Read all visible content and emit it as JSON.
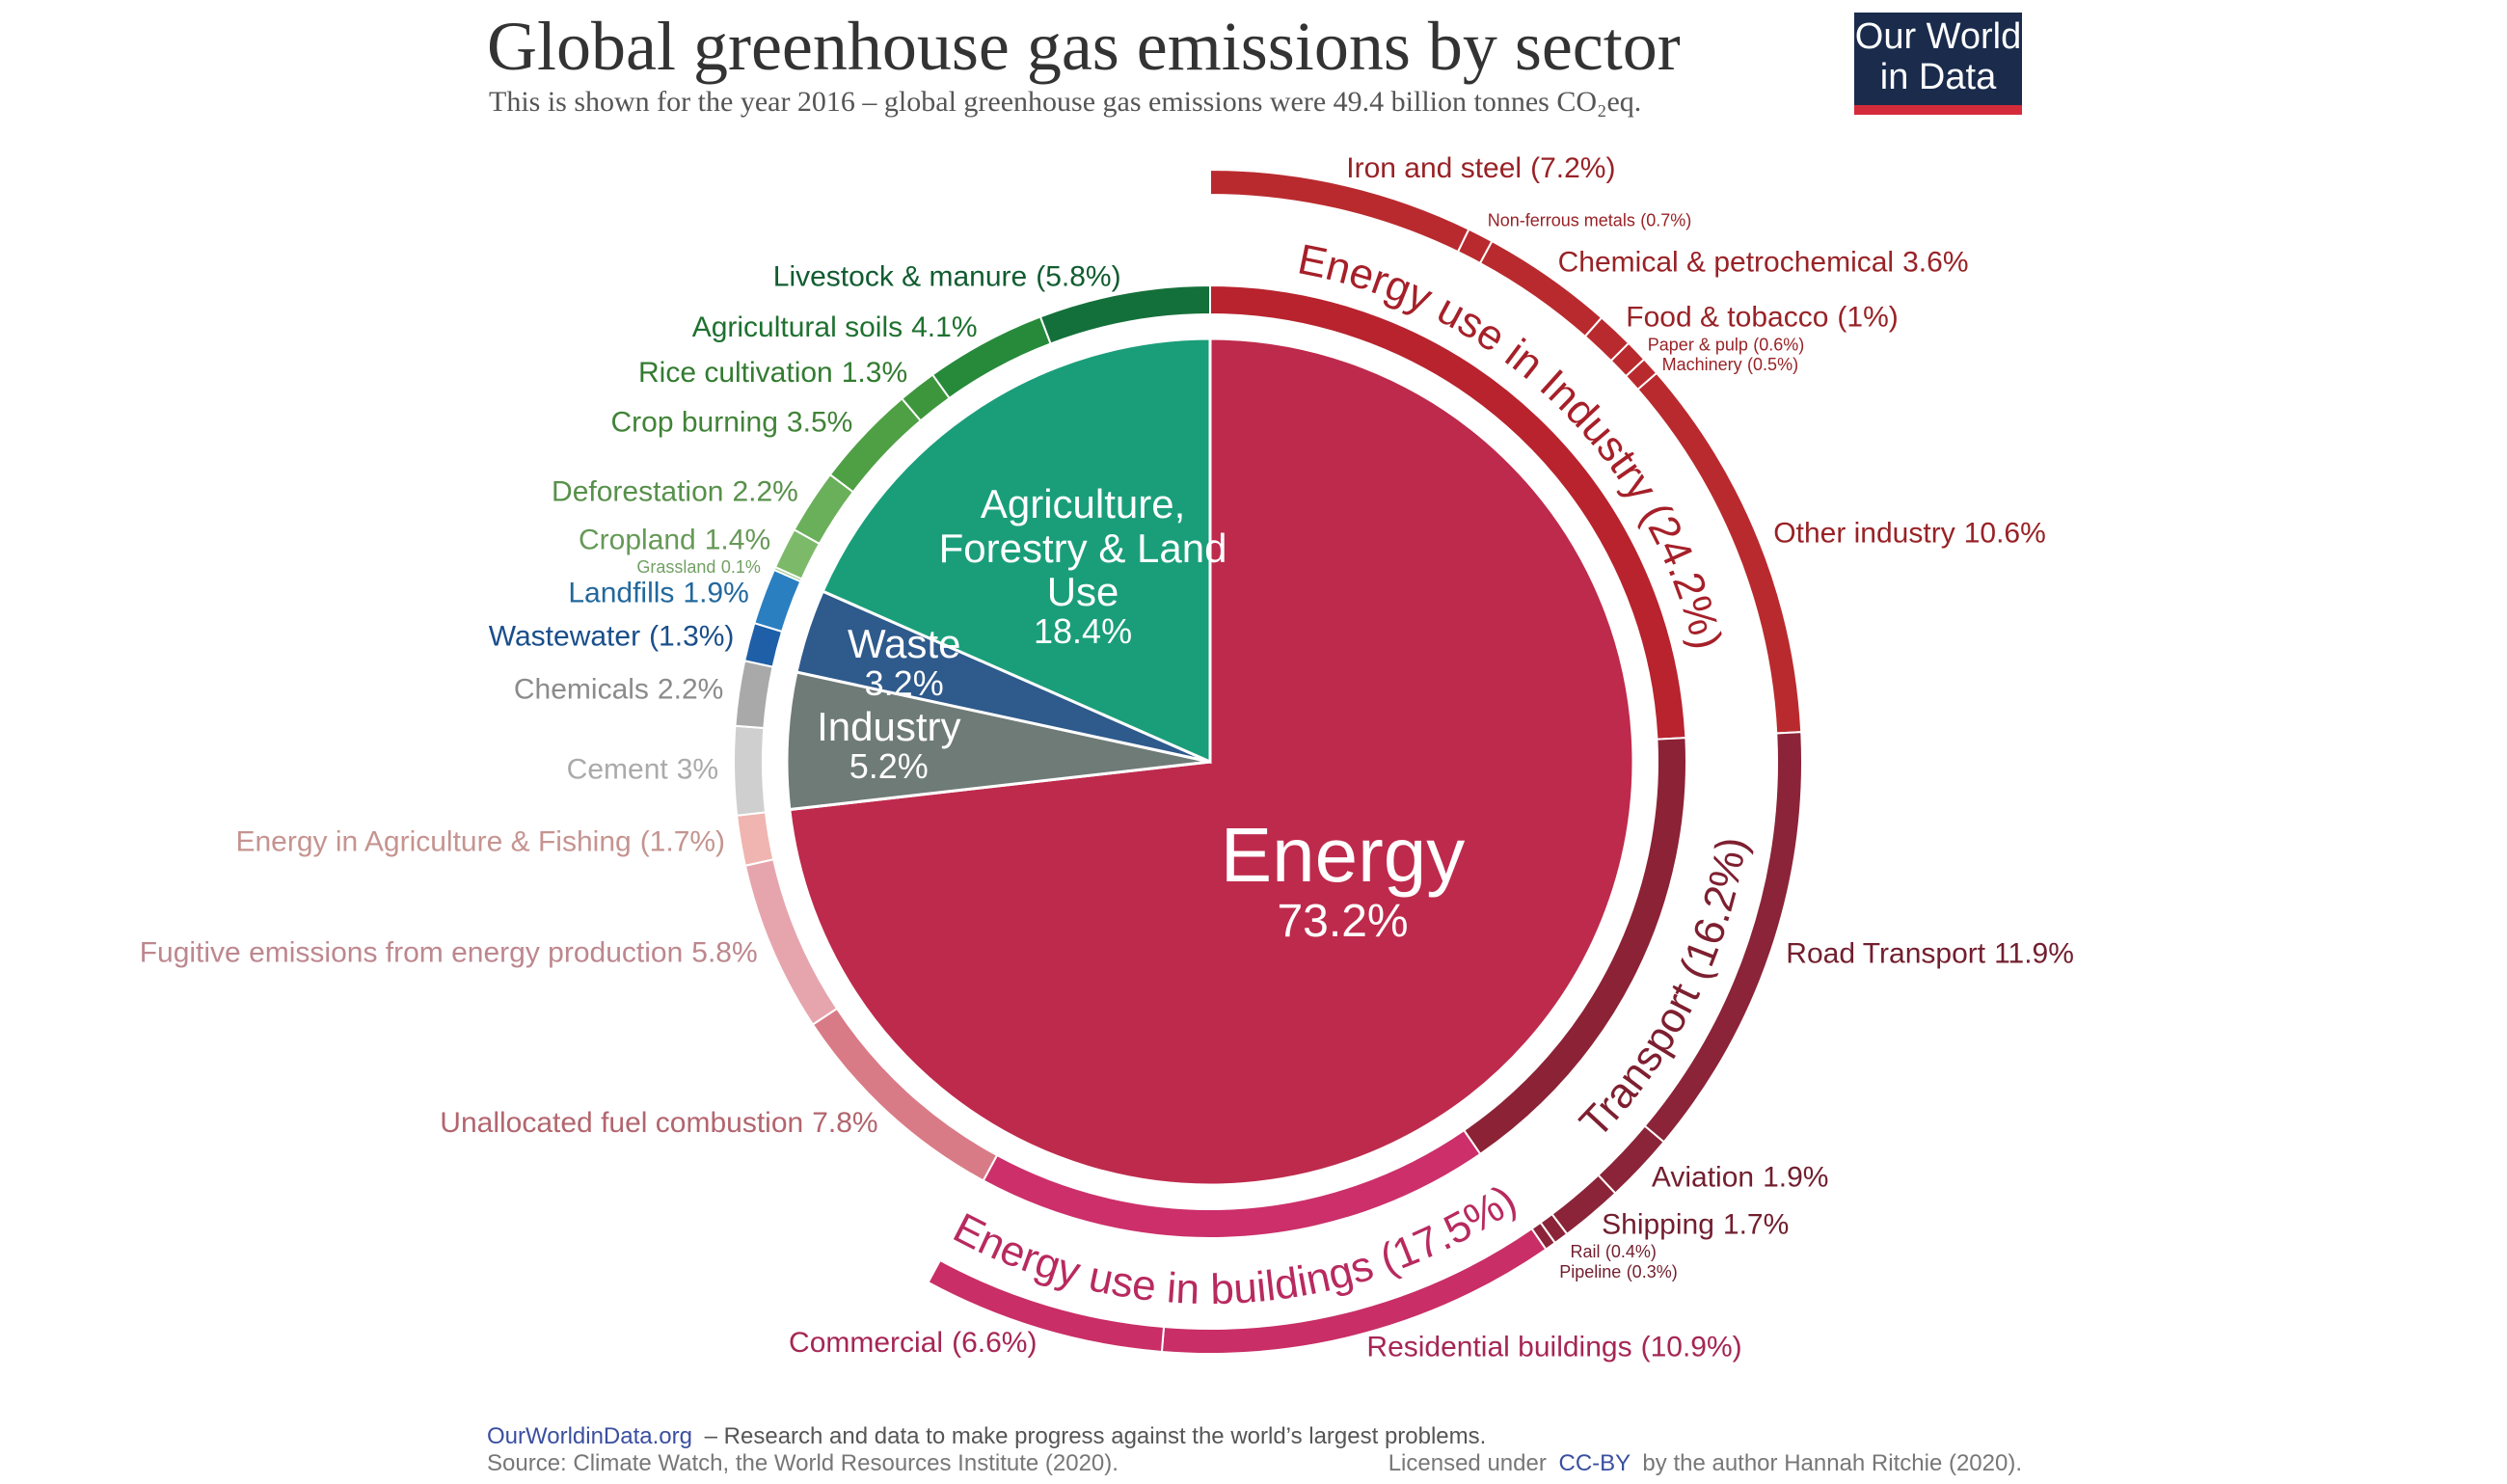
{
  "chart_data": {
    "type": "sunburst",
    "title": "Global greenhouse gas emissions by sector",
    "subtitle": "This is shown for the year 2016 – global greenhouse gas emissions were 49.4 billion tonnes CO₂eq.",
    "logo": [
      "Our World",
      "in Data"
    ],
    "sectors": [
      {
        "name": "Energy",
        "value": 73.2,
        "value_label": "73.2%",
        "color": "#be2a4c",
        "subsectors": [
          {
            "name": "Energy use in Industry",
            "value": 24.2,
            "value_label": "(24.2%)",
            "color": "#b8232e",
            "subsectors": [
              {
                "name": "Iron and steel",
                "value": 7.2,
                "value_label": "(7.2%)",
                "color": "#b92a2e"
              },
              {
                "name": "Non-ferrous metals",
                "value": 0.7,
                "value_label": "(0.7%)",
                "color": "#b92a2e"
              },
              {
                "name": "Chemical & petrochemical",
                "value": 3.6,
                "value_label": "3.6%",
                "color": "#b92a2e"
              },
              {
                "name": "Food & tobacco",
                "value": 1,
                "value_label": "(1%)",
                "color": "#b92a2e"
              },
              {
                "name": "Paper & pulp",
                "value": 0.6,
                "value_label": "(0.6%)",
                "color": "#b92a2e"
              },
              {
                "name": "Machinery",
                "value": 0.5,
                "value_label": "(0.5%)",
                "color": "#b92a2e"
              },
              {
                "name": "Other industry",
                "value": 10.6,
                "value_label": "10.6%",
                "color": "#b92a2e"
              }
            ]
          },
          {
            "name": "Transport",
            "value": 16.2,
            "value_label": "(16.2%)",
            "color": "#8c2235",
            "subsectors": [
              {
                "name": "Road Transport",
                "value": 11.9,
                "value_label": "11.9%",
                "color": "#8b2438"
              },
              {
                "name": "Aviation",
                "value": 1.9,
                "value_label": "1.9%",
                "color": "#8b2438"
              },
              {
                "name": "Shipping",
                "value": 1.7,
                "value_label": "1.7%",
                "color": "#8b2438"
              },
              {
                "name": "Rail",
                "value": 0.4,
                "value_label": "(0.4%)",
                "color": "#8b2438"
              },
              {
                "name": "Pipeline",
                "value": 0.3,
                "value_label": "(0.3%)",
                "color": "#8b2438"
              }
            ]
          },
          {
            "name": "Energy use in buildings",
            "value": 17.5,
            "value_label": "(17.5%)",
            "color": "#cc2f6a",
            "subsectors": [
              {
                "name": "Residential buildings",
                "value": 10.9,
                "value_label": "(10.9%)",
                "color": "#c92e66"
              },
              {
                "name": "Commercial",
                "value": 6.6,
                "value_label": "(6.6%)",
                "color": "#c92e66"
              }
            ]
          },
          {
            "name": "Unallocated fuel combustion",
            "value": 7.8,
            "value_label": "7.8%",
            "color": "#d97b86"
          },
          {
            "name": "Fugitive emissions from energy production",
            "value": 5.8,
            "value_label": "5.8%",
            "color": "#e6a5ad"
          },
          {
            "name": "Energy in Agriculture & Fishing",
            "value": 1.7,
            "value_label": "(1.7%)",
            "color": "#f0b5b0"
          }
        ]
      },
      {
        "name": "Industry",
        "value": 5.2,
        "value_label": "5.2%",
        "color": "#6f7b77",
        "subsectors": [
          {
            "name": "Cement",
            "value": 3,
            "value_label": "3%",
            "color": "#cfcfcf"
          },
          {
            "name": "Chemicals",
            "value": 2.2,
            "value_label": "2.2%",
            "color": "#a9a9a9"
          }
        ]
      },
      {
        "name": "Waste",
        "value": 3.2,
        "value_label": "3.2%",
        "color": "#2e5a8c",
        "subsectors": [
          {
            "name": "Wastewater",
            "value": 1.3,
            "value_label": "(1.3%)",
            "color": "#1f5fa8"
          },
          {
            "name": "Landfills",
            "value": 1.9,
            "value_label": "1.9%",
            "color": "#2a7fc0"
          }
        ]
      },
      {
        "name": "Agriculture, Forestry & Land Use",
        "value": 18.4,
        "value_label": "18.4%",
        "color": "#1a9e7a",
        "subsectors": [
          {
            "name": "Grassland",
            "value": 0.1,
            "value_label": "0.1%",
            "color": "#8bc37a"
          },
          {
            "name": "Cropland",
            "value": 1.4,
            "value_label": "1.4%",
            "color": "#7cba6a"
          },
          {
            "name": "Deforestation",
            "value": 2.2,
            "value_label": "2.2%",
            "color": "#6aaf5a"
          },
          {
            "name": "Crop burning",
            "value": 3.5,
            "value_label": "3.5%",
            "color": "#4fa044"
          },
          {
            "name": "Rice cultivation",
            "value": 1.3,
            "value_label": "1.3%",
            "color": "#3e963c"
          },
          {
            "name": "Agricultural soils",
            "value": 4.1,
            "value_label": "4.1%",
            "color": "#268a3a"
          },
          {
            "name": "Livestock & manure",
            "value": 5.8,
            "value_label": "(5.8%)",
            "color": "#14703a"
          }
        ]
      }
    ],
    "footer": {
      "site": "OurWorldinData.org",
      "tagline": "– Research and data to make progress against the world’s largest problems.",
      "source": "Source: Climate Watch, the World Resources Institute (2020).",
      "license_prefix": "Licensed under",
      "license_link": "CC-BY",
      "license_suffix": "by the author Hannah Ritchie  (2020)."
    }
  }
}
